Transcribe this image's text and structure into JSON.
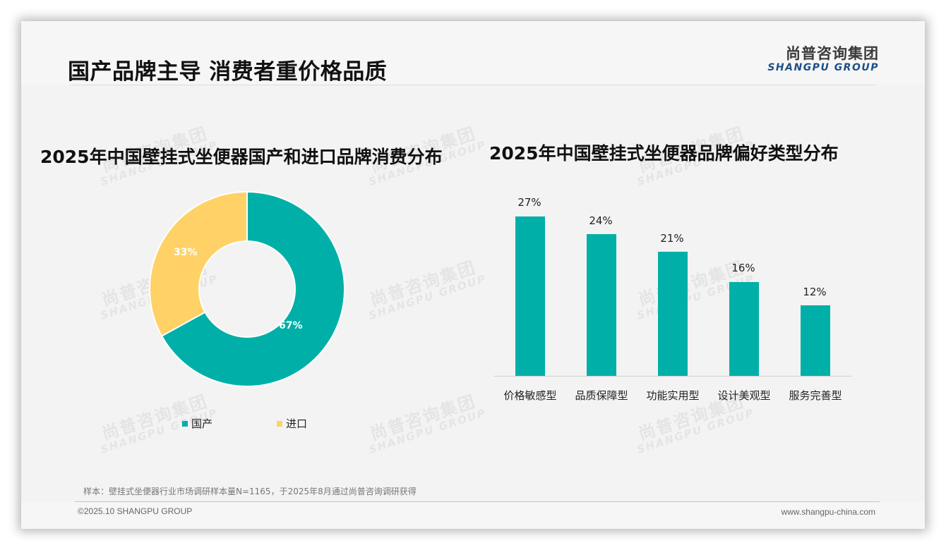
{
  "header": {
    "title": "国产品牌主导 消费者重价格品质",
    "logo_cn": "尚普咨询集团",
    "logo_en": "SHANGPU GROUP"
  },
  "watermark": {
    "cn": "尚普咨询集团",
    "en": "SHANGPU GROUP"
  },
  "left_chart": {
    "title": "2025年中国壁挂式坐便器国产和进口品牌消费分布",
    "slices": [
      {
        "label": "国产",
        "value": 67,
        "display": "67%",
        "color": "#00b0a8"
      },
      {
        "label": "进口",
        "value": 33,
        "display": "33%",
        "color": "#ffd166"
      }
    ],
    "legend": [
      {
        "label": "国产",
        "color": "#00b0a8"
      },
      {
        "label": "进口",
        "color": "#ffd166"
      }
    ]
  },
  "right_chart": {
    "title": "2025年中国壁挂式坐便器品牌偏好类型分布",
    "bars": [
      {
        "category": "价格敏感型",
        "value": 27,
        "display": "27%"
      },
      {
        "category": "品质保障型",
        "value": 24,
        "display": "24%"
      },
      {
        "category": "功能实用型",
        "value": 21,
        "display": "21%"
      },
      {
        "category": "设计美观型",
        "value": 16,
        "display": "16%"
      },
      {
        "category": "服务完善型",
        "value": 12,
        "display": "12%"
      }
    ],
    "bar_color": "#00b0a8"
  },
  "chart_data": [
    {
      "type": "pie",
      "title": "2025年中国壁挂式坐便器国产和进口品牌消费分布",
      "categories": [
        "国产",
        "进口"
      ],
      "values": [
        67,
        33
      ],
      "unit": "%",
      "donut": true,
      "colors": [
        "#00b0a8",
        "#ffd166"
      ],
      "legend_position": "bottom"
    },
    {
      "type": "bar",
      "title": "2025年中国壁挂式坐便器品牌偏好类型分布",
      "categories": [
        "价格敏感型",
        "品质保障型",
        "功能实用型",
        "设计美观型",
        "服务完善型"
      ],
      "values": [
        27,
        24,
        21,
        16,
        12
      ],
      "unit": "%",
      "xlabel": "",
      "ylabel": "",
      "grid": false,
      "data_labels": true,
      "color": "#00b0a8"
    }
  ],
  "footer": {
    "source": "样本：壁挂式坐便器行业市场调研样本量N=1165，于2025年8月通过尚普咨询调研获得",
    "copyright": "©2025.10 SHANGPU GROUP",
    "website": "www.shangpu-china.com"
  }
}
